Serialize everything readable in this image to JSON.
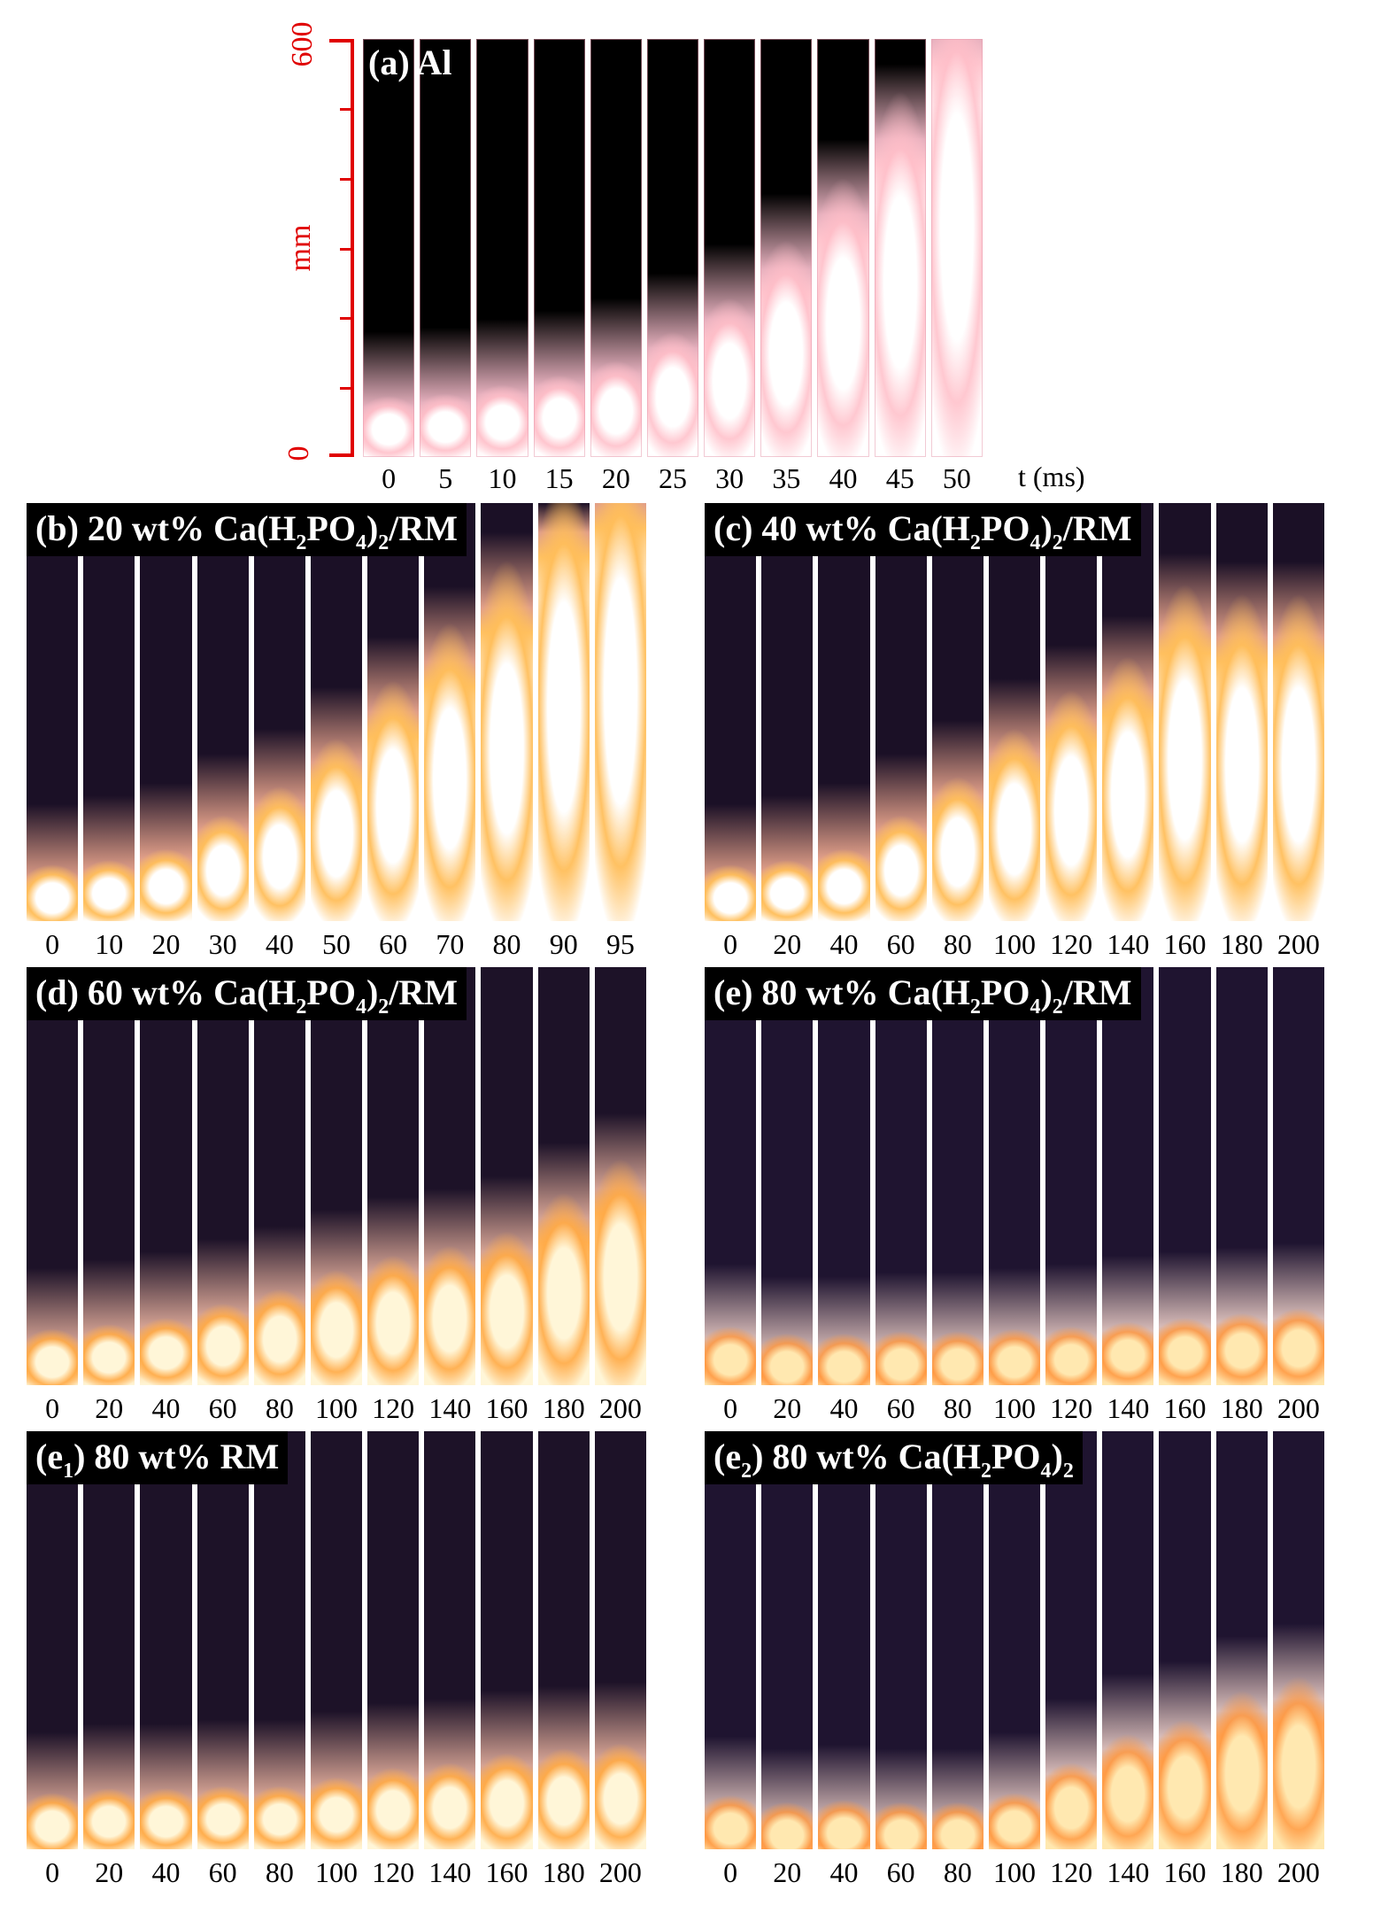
{
  "panels": [
    {
      "id": "a",
      "label": "(a) Al",
      "ticks": [
        "0",
        "5",
        "10",
        "15",
        "20",
        "25",
        "30",
        "35",
        "40",
        "45",
        "50"
      ],
      "heights": [
        0.12,
        0.13,
        0.15,
        0.17,
        0.2,
        0.26,
        0.33,
        0.45,
        0.58,
        0.76,
        1.0
      ],
      "style": "al"
    },
    {
      "id": "b",
      "label": "(b) 20 wt% Ca(H2PO4)2/RM",
      "ticks": [
        "0",
        "10",
        "20",
        "30",
        "40",
        "50",
        "60",
        "70",
        "80",
        "90",
        "95"
      ],
      "heights": [
        0.1,
        0.12,
        0.15,
        0.22,
        0.28,
        0.38,
        0.5,
        0.62,
        0.75,
        0.93,
        1.0
      ],
      "style": "hot"
    },
    {
      "id": "c",
      "label": "(c) 40 wt% Ca(H2PO4)2/RM",
      "ticks": [
        "0",
        "20",
        "40",
        "60",
        "80",
        "100",
        "120",
        "140",
        "160",
        "180",
        "200"
      ],
      "heights": [
        0.1,
        0.12,
        0.15,
        0.22,
        0.3,
        0.4,
        0.48,
        0.55,
        0.7,
        0.68,
        0.68
      ],
      "style": "hot"
    },
    {
      "id": "d",
      "label": "(d) 60 wt% Ca(H2PO4)2/RM",
      "ticks": [
        "0",
        "20",
        "40",
        "60",
        "80",
        "100",
        "120",
        "140",
        "160",
        "180",
        "200"
      ],
      "heights": [
        0.1,
        0.12,
        0.14,
        0.17,
        0.2,
        0.24,
        0.27,
        0.29,
        0.32,
        0.4,
        0.47
      ],
      "style": "warm"
    },
    {
      "id": "e",
      "label": "(e) 80 wt% Ca(H2PO4)2/RM",
      "ticks": [
        "0",
        "20",
        "40",
        "60",
        "80",
        "100",
        "120",
        "140",
        "160",
        "180",
        "200"
      ],
      "heights": [
        0.11,
        0.08,
        0.08,
        0.09,
        0.09,
        0.1,
        0.11,
        0.13,
        0.14,
        0.15,
        0.16
      ],
      "style": "dim"
    },
    {
      "id": "e1",
      "label": "(e1) 80 wt% RM",
      "ticks": [
        "0",
        "20",
        "40",
        "60",
        "80",
        "100",
        "120",
        "140",
        "160",
        "180",
        "200"
      ],
      "heights": [
        0.1,
        0.12,
        0.12,
        0.13,
        0.13,
        0.15,
        0.17,
        0.18,
        0.2,
        0.21,
        0.22
      ],
      "style": "warm"
    },
    {
      "id": "e2",
      "label": "(e2) 80 wt% Ca(H2PO4)2",
      "ticks": [
        "0",
        "20",
        "40",
        "60",
        "80",
        "100",
        "120",
        "140",
        "160",
        "180",
        "200"
      ],
      "heights": [
        0.09,
        0.06,
        0.07,
        0.06,
        0.06,
        0.1,
        0.18,
        0.24,
        0.27,
        0.33,
        0.36
      ],
      "style": "dim"
    }
  ],
  "axis": {
    "ymax": "600",
    "ymin": "0",
    "ylabel": "mm",
    "tlabel": "t (ms)"
  },
  "colors": {
    "axis": "#e00000",
    "background": "#1a0f22"
  }
}
